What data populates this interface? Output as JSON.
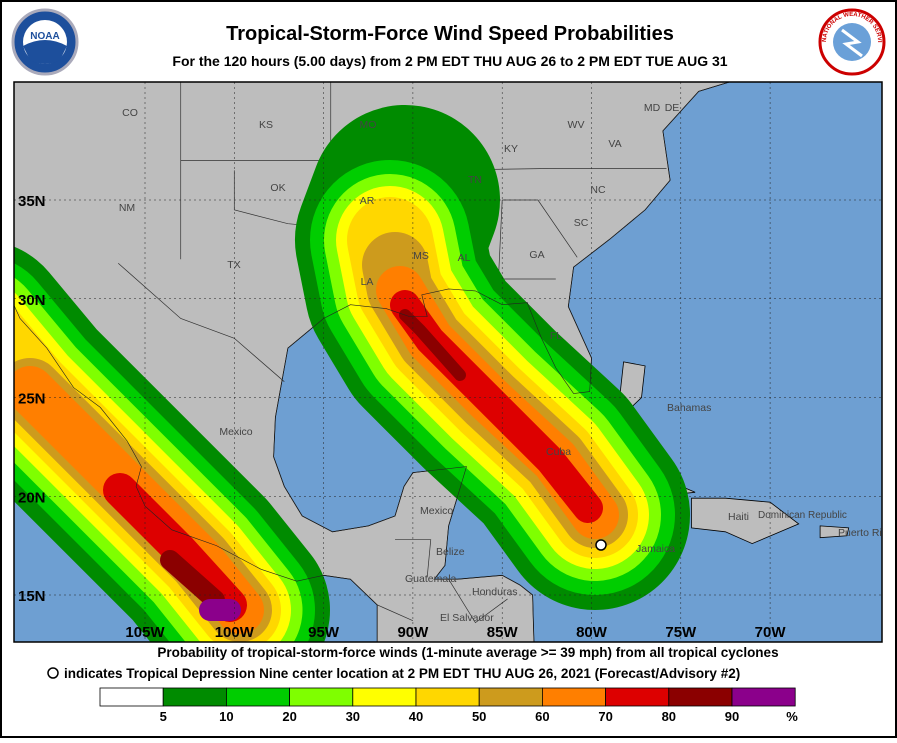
{
  "header": {
    "title": "Tropical-Storm-Force Wind Speed Probabilities",
    "subtitle": "For the 120 hours (5.00 days) from 2 PM EDT THU AUG 26 to 2 PM EDT TUE AUG 31",
    "left_logo": "NOAA",
    "right_logo": "NATIONAL WEATHER SERVICE"
  },
  "map": {
    "latitude_labels": [
      "35N",
      "30N",
      "25N",
      "20N",
      "15N"
    ],
    "longitude_labels": [
      "105W",
      "100W",
      "95W",
      "90W",
      "85W",
      "80W",
      "75W",
      "70W"
    ],
    "places": [
      "CO",
      "KS",
      "MO",
      "KY",
      "WV",
      "VA",
      "MD",
      "DE",
      "NM",
      "OK",
      "TN",
      "NC",
      "AR",
      "SC",
      "TX",
      "MS",
      "AL",
      "GA",
      "LA",
      "FL",
      "Bahamas",
      "Mexico",
      "Cuba",
      "Mexico",
      "Haiti",
      "Dominican Republic",
      "Puerto Rico",
      "Jamaica",
      "Belize",
      "Guatemala",
      "Honduras",
      "El Salvador"
    ]
  },
  "caption": {
    "line1": "Probability of tropical-storm-force winds (1-minute average >= 39 mph) from all tropical cyclones",
    "line2": "indicates Tropical Depression Nine center location at 2 PM EDT THU AUG 26, 2021 (Forecast/Advisory #2)"
  },
  "legend": {
    "colors": [
      "#ffffff",
      "#008b00",
      "#00cd00",
      "#7fff00",
      "#ffff00",
      "#ffd700",
      "#cd9b1d",
      "#ff7f00",
      "#dd0000",
      "#8b0000",
      "#8b008b"
    ],
    "ticks": [
      5,
      10,
      20,
      30,
      40,
      50,
      60,
      70,
      80,
      90
    ],
    "unit": "%"
  }
}
